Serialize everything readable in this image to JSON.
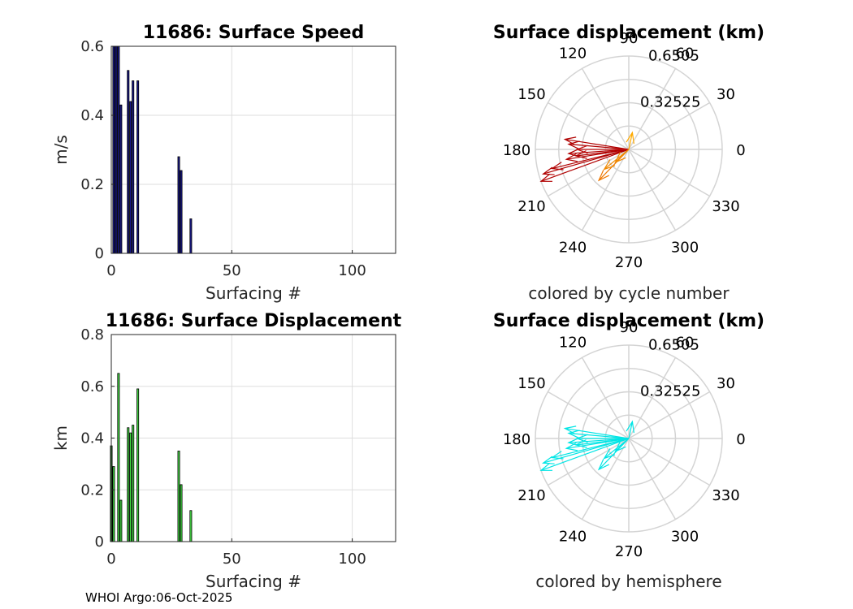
{
  "footer": "WHOI Argo:06-Oct-2025",
  "chart_data": [
    {
      "type": "bar",
      "title": "11686: Surface Speed",
      "xlabel": "Surfacing #",
      "ylabel": "m/s",
      "xlim": [
        0,
        118
      ],
      "ylim": [
        0,
        0.6
      ],
      "xticks": [
        "0",
        "50",
        "100"
      ],
      "yticks": [
        "0",
        "0.2",
        "0.4",
        "0.6"
      ],
      "grid": true,
      "bar_color": "#1a1a8c",
      "x": [
        1,
        2,
        3,
        4,
        7,
        8,
        9,
        11,
        28,
        29,
        33
      ],
      "values": [
        0.6,
        0.6,
        0.6,
        0.43,
        0.53,
        0.44,
        0.5,
        0.5,
        0.28,
        0.24,
        0.1
      ]
    },
    {
      "type": "bar",
      "title": "11686: Surface Displacement",
      "xlabel": "Surfacing #",
      "ylabel": "km",
      "xlim": [
        0,
        118
      ],
      "ylim": [
        0,
        0.8
      ],
      "xticks": [
        "0",
        "50",
        "100"
      ],
      "yticks": [
        "0",
        "0.2",
        "0.4",
        "0.6",
        "0.8"
      ],
      "grid": true,
      "bar_color": "#44dd44",
      "x": [
        0,
        1,
        3,
        4,
        7,
        8,
        9,
        11,
        28,
        29,
        33
      ],
      "values": [
        0.37,
        0.29,
        0.65,
        0.16,
        0.44,
        0.42,
        0.45,
        0.59,
        0.35,
        0.22,
        0.12
      ]
    },
    {
      "type": "polar",
      "title": "Surface displacement (km)",
      "caption": "colored by cycle number",
      "rmax": 0.6505,
      "rticks": [
        "0.32525",
        "0.6505"
      ],
      "theta_ticks": [
        "0",
        "30",
        "60",
        "90",
        "120",
        "150",
        "180",
        "210",
        "240",
        "270",
        "300",
        "330"
      ],
      "vectors": [
        {
          "angle": 200,
          "r": 0.65,
          "color": "#b00000"
        },
        {
          "angle": 196,
          "r": 0.62,
          "color": "#b00000"
        },
        {
          "angle": 194,
          "r": 0.55,
          "color": "#b00000"
        },
        {
          "angle": 189,
          "r": 0.44,
          "color": "#b00000"
        },
        {
          "angle": 184,
          "r": 0.42,
          "color": "#b00000"
        },
        {
          "angle": 175,
          "r": 0.42,
          "color": "#b00000"
        },
        {
          "angle": 171,
          "r": 0.45,
          "color": "#b00000"
        },
        {
          "angle": 187,
          "r": 0.37,
          "color": "#b00000"
        },
        {
          "angle": 180,
          "r": 0.36,
          "color": "#c01010"
        },
        {
          "angle": 226,
          "r": 0.3,
          "color": "#ee7700"
        },
        {
          "angle": 219,
          "r": 0.22,
          "color": "#ee8800"
        },
        {
          "angle": 224,
          "r": 0.13,
          "color": "#ee8800"
        },
        {
          "angle": 78,
          "r": 0.12,
          "color": "#ffaa00"
        }
      ]
    },
    {
      "type": "polar",
      "title": "Surface displacement (km)",
      "caption": "colored by hemisphere",
      "rmax": 0.6505,
      "rticks": [
        "0.32525",
        "0.6505"
      ],
      "theta_ticks": [
        "0",
        "30",
        "60",
        "90",
        "120",
        "150",
        "180",
        "210",
        "240",
        "270",
        "300",
        "330"
      ],
      "vectors": [
        {
          "angle": 200,
          "r": 0.65,
          "color": "#00e5e5"
        },
        {
          "angle": 196,
          "r": 0.62,
          "color": "#00e5e5"
        },
        {
          "angle": 194,
          "r": 0.55,
          "color": "#00e5e5"
        },
        {
          "angle": 189,
          "r": 0.44,
          "color": "#00e5e5"
        },
        {
          "angle": 184,
          "r": 0.42,
          "color": "#00e5e5"
        },
        {
          "angle": 175,
          "r": 0.42,
          "color": "#00e5e5"
        },
        {
          "angle": 171,
          "r": 0.45,
          "color": "#00e5e5"
        },
        {
          "angle": 187,
          "r": 0.37,
          "color": "#00e5e5"
        },
        {
          "angle": 180,
          "r": 0.36,
          "color": "#00e5e5"
        },
        {
          "angle": 226,
          "r": 0.3,
          "color": "#00e5e5"
        },
        {
          "angle": 219,
          "r": 0.22,
          "color": "#00e5e5"
        },
        {
          "angle": 224,
          "r": 0.13,
          "color": "#00e5e5"
        },
        {
          "angle": 78,
          "r": 0.12,
          "color": "#00e5e5"
        }
      ]
    }
  ]
}
